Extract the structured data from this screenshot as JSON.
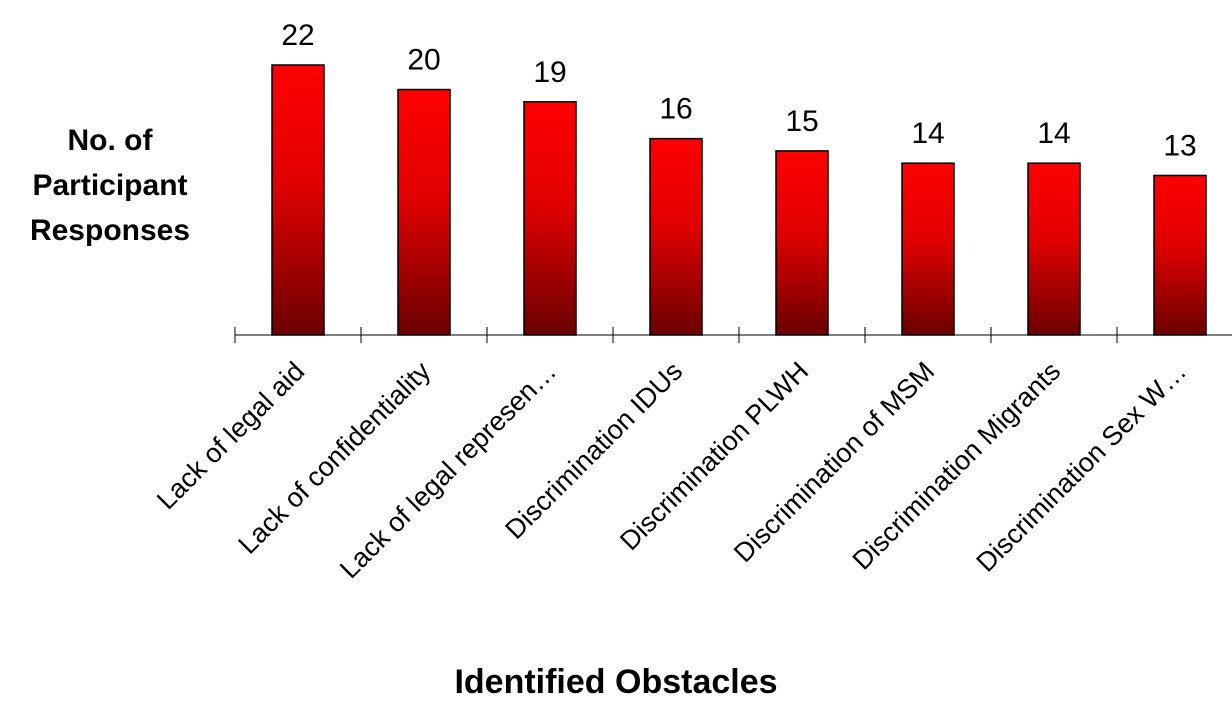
{
  "chart_data": {
    "type": "bar",
    "categories": [
      "Lack of legal aid",
      "Lack of confidentiality",
      "Lack of legal represen…",
      "Discrimination IDUs",
      "Discrimination PLWH",
      "Discrimination of MSM",
      "Discrimination Migrants",
      "Discrimination Sex W…"
    ],
    "values": [
      22,
      20,
      19,
      16,
      15,
      14,
      14,
      13
    ],
    "ylabel_lines": [
      "No. of",
      "Participant",
      "Responses"
    ],
    "xlabel": "Identified Obstacles",
    "ylim": [
      0,
      22
    ],
    "grid": false,
    "legend": "none",
    "colors": {
      "bar_top": "#ff0000",
      "bar_bottom": "#6b0000",
      "text": "#000000"
    }
  }
}
